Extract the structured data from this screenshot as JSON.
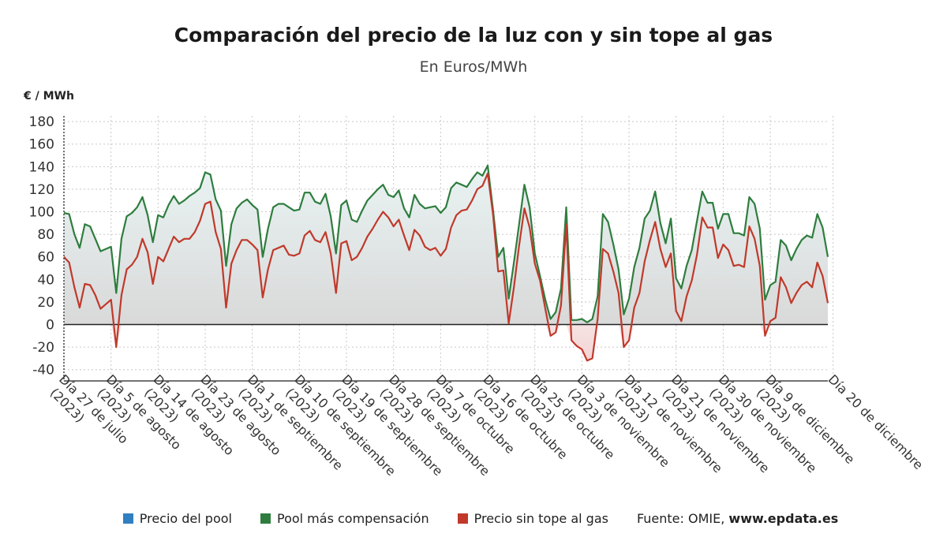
{
  "header": {
    "title": "Comparación del precio de la luz con y sin tope al gas",
    "subtitle": "En Euros/MWh",
    "unit": "€ / MWh"
  },
  "legend": [
    {
      "label": "Precio del pool",
      "color": "#2f7fc1"
    },
    {
      "label": "Pool más compensación",
      "color": "#2e7d3e"
    },
    {
      "label": "Precio sin tope al gas",
      "color": "#c0392b"
    }
  ],
  "source": {
    "prefix": "Fuente: OMIE, ",
    "site": "www.epdata.es"
  },
  "chart_data": {
    "type": "line",
    "ylabel": "€ / MWh",
    "ylim": [
      -50,
      185
    ],
    "yticks": [
      180,
      160,
      140,
      120,
      100,
      80,
      60,
      40,
      20,
      0,
      -20,
      -40
    ],
    "xticks": [
      {
        "index": 0,
        "line1": "Día 27 de julio",
        "line2": "(2023)"
      },
      {
        "index": 9,
        "line1": "Día 5 de agosto",
        "line2": "(2023)"
      },
      {
        "index": 18,
        "line1": "Día 14 de agosto",
        "line2": "(2023)"
      },
      {
        "index": 27,
        "line1": "Día 23 de agosto",
        "line2": "(2023)"
      },
      {
        "index": 36,
        "line1": "Día 1 de septiembre",
        "line2": "(2023)"
      },
      {
        "index": 45,
        "line1": "Día 10 de septiembre",
        "line2": "(2023)"
      },
      {
        "index": 54,
        "line1": "Día 19 de septiembre",
        "line2": "(2023)"
      },
      {
        "index": 63,
        "line1": "Día 28 de septiembre",
        "line2": "(2023)"
      },
      {
        "index": 72,
        "line1": "Día 7 de octubre",
        "line2": "(2023)"
      },
      {
        "index": 81,
        "line1": "Día 16 de octubre",
        "line2": "(2023)"
      },
      {
        "index": 90,
        "line1": "Día 25 de octubre",
        "line2": "(2023)"
      },
      {
        "index": 99,
        "line1": "Día 3 de noviembre",
        "line2": "(2023)"
      },
      {
        "index": 108,
        "line1": "Día 12 de noviembre",
        "line2": "(2023)"
      },
      {
        "index": 117,
        "line1": "Día 21 de noviembre",
        "line2": "(2023)"
      },
      {
        "index": 126,
        "line1": "Día 30 de noviembre",
        "line2": "(2023)"
      },
      {
        "index": 135,
        "line1": "Día 9 de diciembre",
        "line2": "(2023)"
      },
      {
        "index": 147,
        "line1": "Día 20 de diciembre",
        "line2": ""
      }
    ],
    "series": [
      {
        "name": "Pool más compensación",
        "color": "#2e7d3e",
        "values": [
          99,
          98,
          80,
          68,
          89,
          87,
          76,
          65,
          67,
          69,
          28,
          76,
          96,
          99,
          104,
          113,
          97,
          73,
          97,
          95,
          106,
          114,
          107,
          110,
          114,
          117,
          121,
          135,
          133,
          111,
          101,
          52,
          89,
          103,
          108,
          111,
          106,
          102,
          60,
          85,
          104,
          107,
          107,
          104,
          101,
          102,
          117,
          117,
          109,
          107,
          116,
          96,
          63,
          106,
          110,
          93,
          91,
          101,
          110,
          115,
          120,
          124,
          115,
          113,
          119,
          103,
          95,
          115,
          107,
          103,
          104,
          105,
          99,
          104,
          121,
          126,
          124,
          122,
          129,
          135,
          132,
          141,
          102,
          60,
          68,
          23,
          55,
          89,
          124,
          104,
          63,
          43,
          22,
          5,
          11,
          32,
          104,
          4,
          4,
          5,
          2,
          5,
          25,
          98,
          91,
          71,
          49,
          9,
          23,
          51,
          68,
          94,
          101,
          118,
          90,
          72,
          94,
          41,
          32,
          52,
          66,
          92,
          118,
          108,
          108,
          85,
          98,
          98,
          81,
          81,
          79,
          113,
          107,
          85,
          22,
          35,
          38,
          75,
          70,
          57,
          67,
          75,
          79,
          77,
          98,
          86,
          60
        ]
      },
      {
        "name": "Precio sin tope al gas",
        "color": "#c0392b",
        "values": [
          60,
          55,
          33,
          15,
          36,
          35,
          26,
          14,
          18,
          22,
          -20,
          26,
          49,
          53,
          60,
          76,
          64,
          36,
          60,
          56,
          67,
          78,
          73,
          76,
          76,
          82,
          92,
          107,
          109,
          82,
          67,
          15,
          54,
          66,
          75,
          75,
          71,
          66,
          24,
          49,
          66,
          68,
          70,
          62,
          61,
          63,
          79,
          83,
          75,
          73,
          82,
          63,
          28,
          72,
          74,
          57,
          60,
          68,
          78,
          85,
          93,
          100,
          95,
          87,
          93,
          79,
          66,
          84,
          79,
          69,
          66,
          68,
          61,
          67,
          86,
          97,
          101,
          102,
          110,
          120,
          123,
          134,
          98,
          47,
          48,
          1,
          33,
          70,
          103,
          86,
          54,
          39,
          14,
          -10,
          -7,
          17,
          89,
          -14,
          -19,
          -22,
          -32,
          -30,
          5,
          67,
          63,
          47,
          28,
          -20,
          -14,
          15,
          28,
          56,
          75,
          91,
          67,
          51,
          63,
          12,
          3,
          25,
          39,
          62,
          95,
          86,
          86,
          59,
          71,
          66,
          52,
          53,
          51,
          87,
          76,
          52,
          -10,
          3,
          6,
          42,
          33,
          19,
          28,
          35,
          38,
          33,
          55,
          43,
          19
        ]
      }
    ]
  }
}
